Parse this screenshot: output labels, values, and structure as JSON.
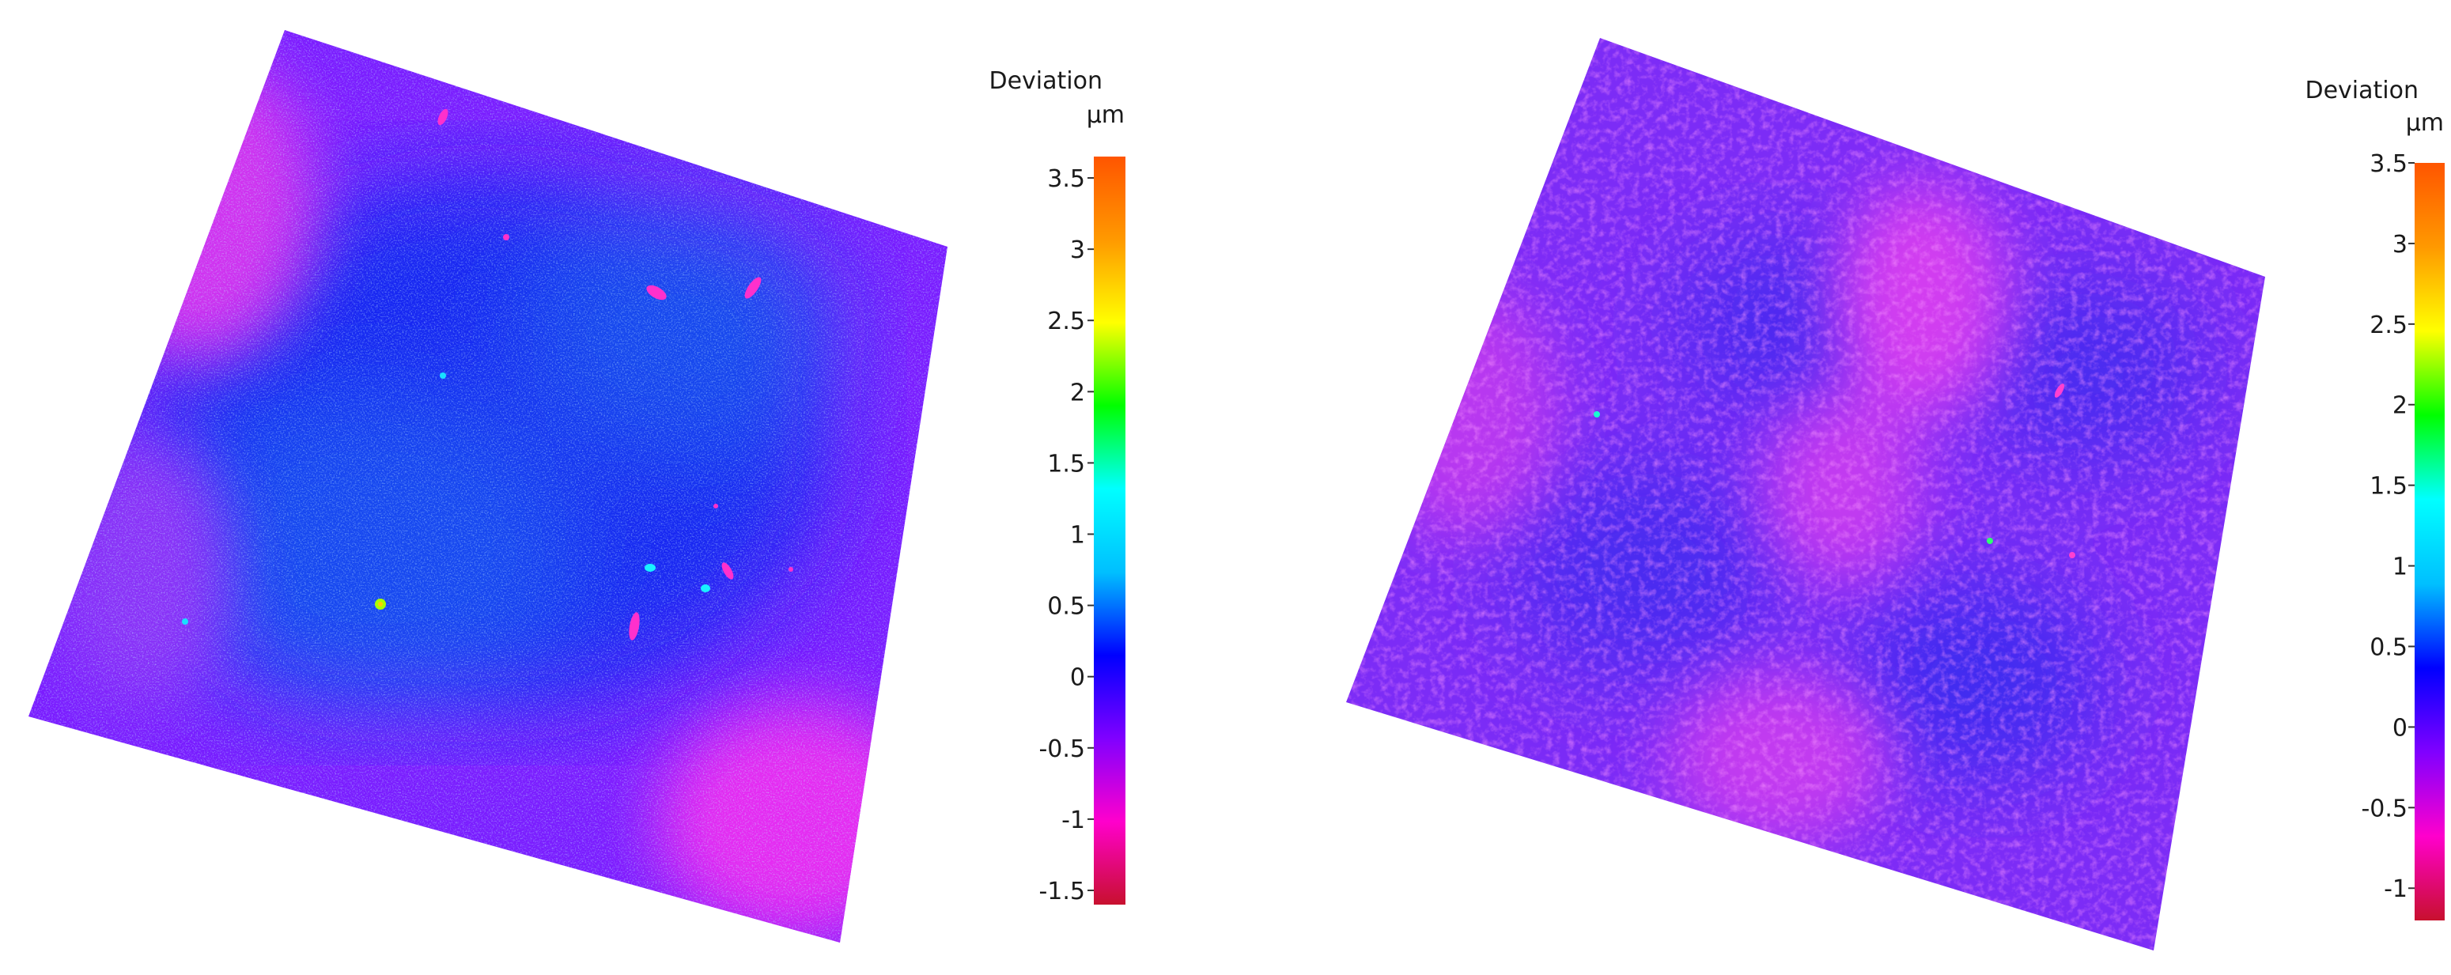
{
  "chart_data": [
    {
      "type": "heatmap",
      "legend_title": "Deviation",
      "unit": "µm",
      "colorbar_range": [
        -1.6,
        3.65
      ],
      "ticks": [
        {
          "value": 3.5,
          "label": "3.5"
        },
        {
          "value": 3,
          "label": "3"
        },
        {
          "value": 2.5,
          "label": "2.5"
        },
        {
          "value": 2,
          "label": "2"
        },
        {
          "value": 1.5,
          "label": "1.5"
        },
        {
          "value": 1,
          "label": "1"
        },
        {
          "value": 0.5,
          "label": "0.5"
        },
        {
          "value": 0,
          "label": "0"
        },
        {
          "value": -0.5,
          "label": "-0.5"
        },
        {
          "value": -1,
          "label": "-1"
        },
        {
          "value": -1.5,
          "label": "-1.5"
        }
      ],
      "legend_placement": "right",
      "colormap": [
        "#c8102e",
        "#ff00cc",
        "#8000ff",
        "#0000ff",
        "#00bfff",
        "#00ffff",
        "#00ff00",
        "#ffff00",
        "#ff9900",
        "#ff5500"
      ],
      "surface_typical_range": [
        -0.5,
        0.6
      ]
    },
    {
      "type": "heatmap",
      "legend_title": "Deviation",
      "unit": "µm",
      "colorbar_range": [
        -1.2,
        3.5
      ],
      "ticks": [
        {
          "value": 3.5,
          "label": "3.5"
        },
        {
          "value": 3,
          "label": "3"
        },
        {
          "value": 2.5,
          "label": "2.5"
        },
        {
          "value": 2,
          "label": "2"
        },
        {
          "value": 1.5,
          "label": "1.5"
        },
        {
          "value": 1,
          "label": "1"
        },
        {
          "value": 0.5,
          "label": "0.5"
        },
        {
          "value": 0,
          "label": "0"
        },
        {
          "value": -0.5,
          "label": "-0.5"
        },
        {
          "value": -1,
          "label": "-1"
        }
      ],
      "legend_placement": "right",
      "colormap": [
        "#c8102e",
        "#ff00cc",
        "#8000ff",
        "#0000ff",
        "#00bfff",
        "#00ffff",
        "#00ff00",
        "#ffff00",
        "#ff9900",
        "#ff5500"
      ],
      "surface_typical_range": [
        -0.3,
        0.4
      ]
    }
  ]
}
